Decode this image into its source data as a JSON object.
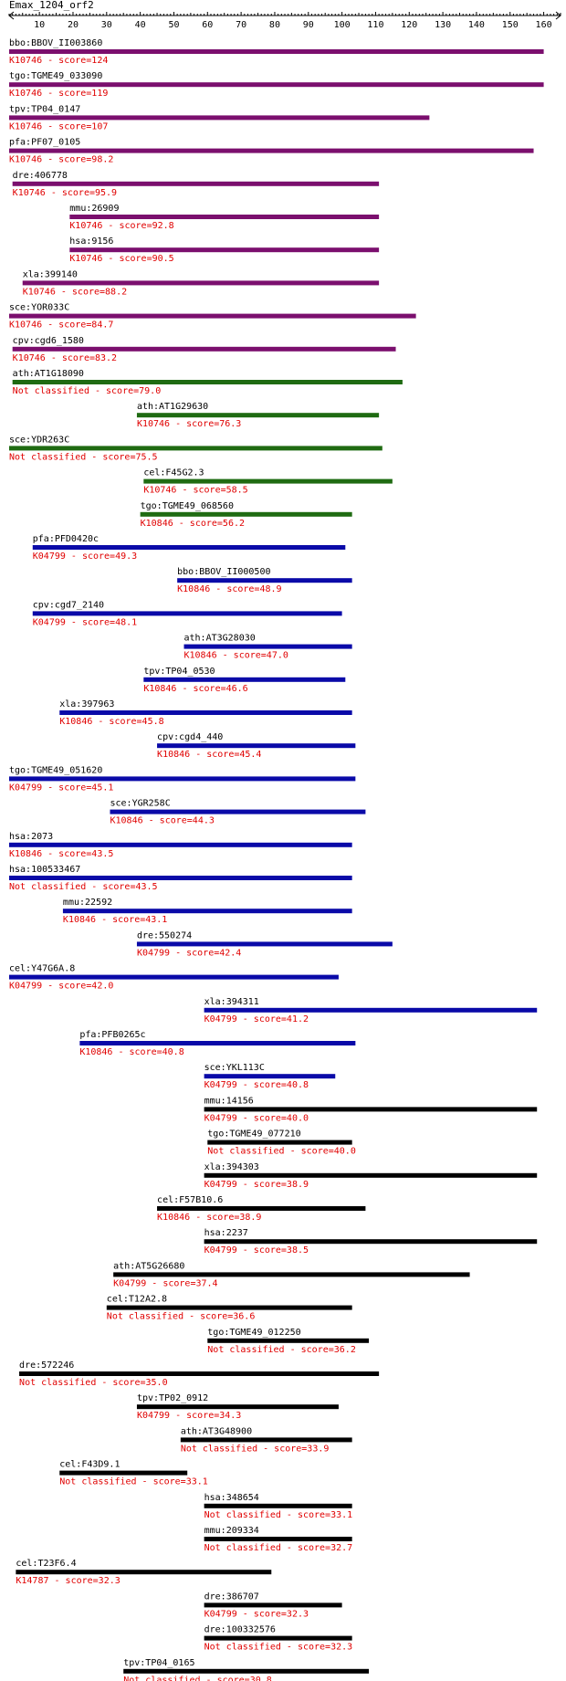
{
  "title": "Emax_1204_orf2",
  "axis": {
    "min": 1,
    "max": 165,
    "ticks": [
      10,
      20,
      30,
      40,
      50,
      60,
      70,
      80,
      90,
      100,
      110,
      120,
      130,
      140,
      150,
      160
    ]
  },
  "colors": {
    "purple": "#7b0f6e",
    "green": "#1f6b12",
    "blue": "#0a0aa8",
    "black": "#000000",
    "score": "#e00000"
  },
  "hits": [
    {
      "name": "bbo:BBOV_II003860",
      "score": "K10746 - score=124",
      "start": 1,
      "end": 160,
      "color": "purple"
    },
    {
      "name": "tgo:TGME49_033090",
      "score": "K10746 - score=119",
      "start": 1,
      "end": 160,
      "color": "purple"
    },
    {
      "name": "tpv:TP04_0147",
      "score": "K10746 - score=107",
      "start": 1,
      "end": 126,
      "color": "purple"
    },
    {
      "name": "pfa:PF07_0105",
      "score": "K10746 - score=98.2",
      "start": 1,
      "end": 157,
      "color": "purple"
    },
    {
      "name": "dre:406778",
      "score": "K10746 - score=95.9",
      "start": 2,
      "end": 111,
      "color": "purple"
    },
    {
      "name": "mmu:26909",
      "score": "K10746 - score=92.8",
      "start": 19,
      "end": 111,
      "color": "purple"
    },
    {
      "name": "hsa:9156",
      "score": "K10746 - score=90.5",
      "start": 19,
      "end": 111,
      "color": "purple"
    },
    {
      "name": "xla:399140",
      "score": "K10746 - score=88.2",
      "start": 5,
      "end": 111,
      "color": "purple"
    },
    {
      "name": "sce:YOR033C",
      "score": "K10746 - score=84.7",
      "start": 1,
      "end": 122,
      "color": "purple"
    },
    {
      "name": "cpv:cgd6_1580",
      "score": "K10746 - score=83.2",
      "start": 2,
      "end": 116,
      "color": "purple"
    },
    {
      "name": "ath:AT1G18090",
      "score": "Not classified - score=79.0",
      "start": 2,
      "end": 118,
      "color": "green"
    },
    {
      "name": "ath:AT1G29630",
      "score": "K10746 - score=76.3",
      "start": 39,
      "end": 111,
      "color": "green"
    },
    {
      "name": "sce:YDR263C",
      "score": "Not classified - score=75.5",
      "start": 1,
      "end": 112,
      "color": "green"
    },
    {
      "name": "cel:F45G2.3",
      "score": "K10746 - score=58.5",
      "start": 41,
      "end": 115,
      "color": "green"
    },
    {
      "name": "tgo:TGME49_068560",
      "score": "K10846 - score=56.2",
      "start": 40,
      "end": 103,
      "color": "green"
    },
    {
      "name": "pfa:PFD0420c",
      "score": "K04799 - score=49.3",
      "start": 8,
      "end": 101,
      "color": "blue"
    },
    {
      "name": "bbo:BBOV_II000500",
      "score": "K10846 - score=48.9",
      "start": 51,
      "end": 103,
      "color": "blue"
    },
    {
      "name": "cpv:cgd7_2140",
      "score": "K04799 - score=48.1",
      "start": 8,
      "end": 100,
      "color": "blue"
    },
    {
      "name": "ath:AT3G28030",
      "score": "K10846 - score=47.0",
      "start": 53,
      "end": 103,
      "color": "blue"
    },
    {
      "name": "tpv:TP04_0530",
      "score": "K10846 - score=46.6",
      "start": 41,
      "end": 101,
      "color": "blue"
    },
    {
      "name": "xla:397963",
      "score": "K10846 - score=45.8",
      "start": 16,
      "end": 103,
      "color": "blue"
    },
    {
      "name": "cpv:cgd4_440",
      "score": "K10846 - score=45.4",
      "start": 45,
      "end": 104,
      "color": "blue"
    },
    {
      "name": "tgo:TGME49_051620",
      "score": "K04799 - score=45.1",
      "start": 0,
      "end": 104,
      "color": "blue"
    },
    {
      "name": "sce:YGR258C",
      "score": "K10846 - score=44.3",
      "start": 31,
      "end": 107,
      "color": "blue"
    },
    {
      "name": "hsa:2073",
      "score": "K10846 - score=43.5",
      "start": 0,
      "end": 103,
      "color": "blue"
    },
    {
      "name": "hsa:100533467",
      "score": "Not classified - score=43.5",
      "start": 0,
      "end": 103,
      "color": "blue"
    },
    {
      "name": "mmu:22592",
      "score": "K10846 - score=43.1",
      "start": 17,
      "end": 103,
      "color": "blue"
    },
    {
      "name": "dre:550274",
      "score": "K04799 - score=42.4",
      "start": 39,
      "end": 115,
      "color": "blue"
    },
    {
      "name": "cel:Y47G6A.8",
      "score": "K04799 - score=42.0",
      "start": 0,
      "end": 99,
      "color": "blue"
    },
    {
      "name": "xla:394311",
      "score": "K04799 - score=41.2",
      "start": 59,
      "end": 158,
      "color": "blue"
    },
    {
      "name": "pfa:PFB0265c",
      "score": "K10846 - score=40.8",
      "start": 22,
      "end": 104,
      "color": "blue"
    },
    {
      "name": "sce:YKL113C",
      "score": "K04799 - score=40.8",
      "start": 59,
      "end": 98,
      "color": "blue"
    },
    {
      "name": "mmu:14156",
      "score": "K04799 - score=40.0",
      "start": 59,
      "end": 158,
      "color": "black"
    },
    {
      "name": "tgo:TGME49_077210",
      "score": "Not classified - score=40.0",
      "start": 60,
      "end": 103,
      "color": "black"
    },
    {
      "name": "xla:394303",
      "score": "K04799 - score=38.9",
      "start": 59,
      "end": 158,
      "color": "black"
    },
    {
      "name": "cel:F57B10.6",
      "score": "K10846 - score=38.9",
      "start": 45,
      "end": 107,
      "color": "black"
    },
    {
      "name": "hsa:2237",
      "score": "K04799 - score=38.5",
      "start": 59,
      "end": 158,
      "color": "black"
    },
    {
      "name": "ath:AT5G26680",
      "score": "K04799 - score=37.4",
      "start": 32,
      "end": 138,
      "color": "black"
    },
    {
      "name": "cel:T12A2.8",
      "score": "Not classified - score=36.6",
      "start": 30,
      "end": 103,
      "color": "black"
    },
    {
      "name": "tgo:TGME49_012250",
      "score": "Not classified - score=36.2",
      "start": 60,
      "end": 108,
      "color": "black"
    },
    {
      "name": "dre:572246",
      "score": "Not classified - score=35.0",
      "start": 4,
      "end": 111,
      "color": "black"
    },
    {
      "name": "tpv:TP02_0912",
      "score": "K04799 - score=34.3",
      "start": 39,
      "end": 99,
      "color": "black"
    },
    {
      "name": "ath:AT3G48900",
      "score": "Not classified - score=33.9",
      "start": 52,
      "end": 103,
      "color": "black"
    },
    {
      "name": "cel:F43D9.1",
      "score": "Not classified - score=33.1",
      "start": 16,
      "end": 54,
      "color": "black"
    },
    {
      "name": "hsa:348654",
      "score": "Not classified - score=33.1",
      "start": 59,
      "end": 103,
      "color": "black"
    },
    {
      "name": "mmu:209334",
      "score": "Not classified - score=32.7",
      "start": 59,
      "end": 103,
      "color": "black"
    },
    {
      "name": "cel:T23F6.4",
      "score": "K14787 - score=32.3",
      "start": 3,
      "end": 79,
      "color": "black"
    },
    {
      "name": "dre:386707",
      "score": "K04799 - score=32.3",
      "start": 59,
      "end": 100,
      "color": "black"
    },
    {
      "name": "dre:100332576",
      "score": "Not classified - score=32.3",
      "start": 59,
      "end": 103,
      "color": "black"
    },
    {
      "name": "tpv:TP04_0165",
      "score": "Not classified - score=30.8",
      "start": 35,
      "end": 108,
      "color": "black"
    }
  ]
}
